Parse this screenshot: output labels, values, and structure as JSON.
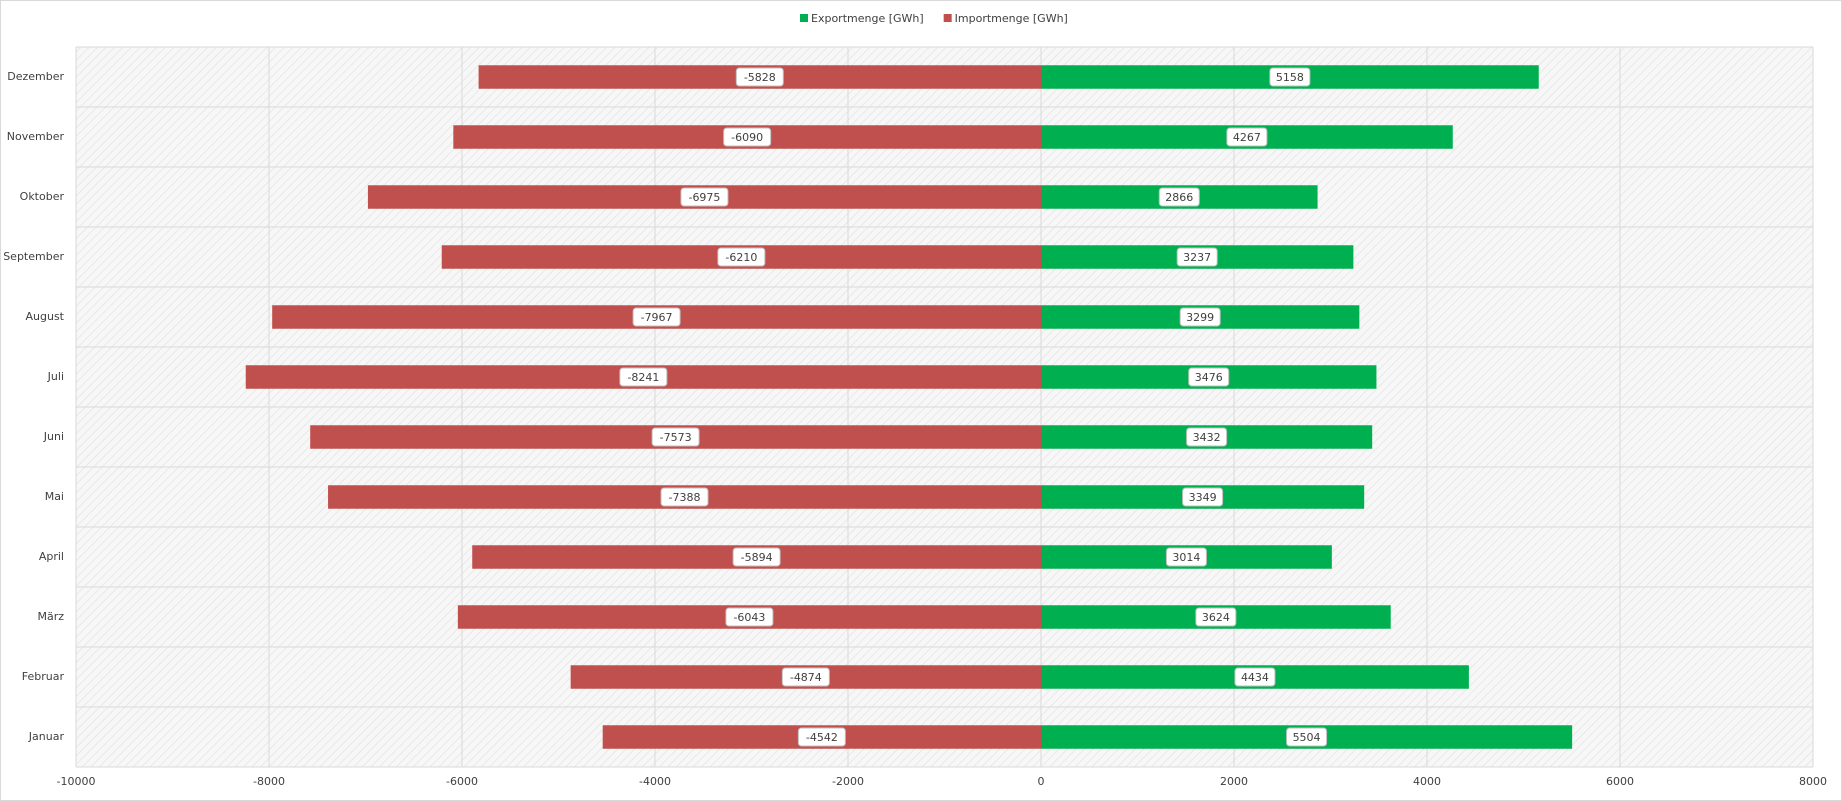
{
  "chart_data": {
    "type": "bar",
    "orientation": "horizontal",
    "categories": [
      "Januar",
      "Februar",
      "März",
      "April",
      "Mai",
      "Juni",
      "Juli",
      "August",
      "September",
      "Oktober",
      "November",
      "Dezember"
    ],
    "series": [
      {
        "name": "Exportmenge [GWh]",
        "color": "#00b050",
        "values": [
          5504,
          4434,
          3624,
          3014,
          3349,
          3432,
          3476,
          3299,
          3237,
          2866,
          4267,
          5158
        ]
      },
      {
        "name": "Importmenge [GWh]",
        "color": "#c0504d",
        "values": [
          -4542,
          -4874,
          -6043,
          -5894,
          -7388,
          -7573,
          -8241,
          -7967,
          -6210,
          -6975,
          -6090,
          -5828
        ]
      }
    ],
    "xlim": [
      -10000,
      8000
    ],
    "xticks": [
      -10000,
      -8000,
      -6000,
      -4000,
      -2000,
      0,
      2000,
      4000,
      6000,
      8000
    ],
    "grid": true,
    "legend": "top"
  }
}
